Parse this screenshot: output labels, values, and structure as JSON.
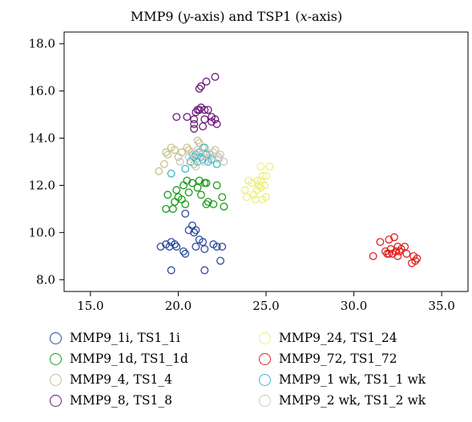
{
  "chart_data": {
    "type": "scatter",
    "title": "MMP9 (y-axis) and TSP1 (x-axis)",
    "xlabel": "",
    "ylabel": "",
    "xlim": [
      13.5,
      36.5
    ],
    "ylim": [
      7.5,
      18.5
    ],
    "xticks": [
      "15.0",
      "20.0",
      "25.0",
      "30.0",
      "35.0"
    ],
    "yticks": [
      "8.0",
      "10.0",
      "12.0",
      "14.0",
      "16.0",
      "18.0"
    ],
    "grid": false,
    "legend_position": "bottom",
    "series": [
      {
        "name": "MMP9_1i, TS1_1i",
        "color": "#2a4a9c",
        "points": [
          [
            19.0,
            9.4
          ],
          [
            19.3,
            9.5
          ],
          [
            19.5,
            9.4
          ],
          [
            19.6,
            9.6
          ],
          [
            19.8,
            9.5
          ],
          [
            19.9,
            9.4
          ],
          [
            19.6,
            8.4
          ],
          [
            20.3,
            9.2
          ],
          [
            20.4,
            9.1
          ],
          [
            20.6,
            10.1
          ],
          [
            20.8,
            10.3
          ],
          [
            20.9,
            10.0
          ],
          [
            21.0,
            9.4
          ],
          [
            21.2,
            9.7
          ],
          [
            21.4,
            9.6
          ],
          [
            21.5,
            9.3
          ],
          [
            21.5,
            8.4
          ],
          [
            20.4,
            10.8
          ],
          [
            22.0,
            9.5
          ],
          [
            22.2,
            9.4
          ],
          [
            22.5,
            9.4
          ],
          [
            22.4,
            8.8
          ],
          [
            21.0,
            10.1
          ]
        ]
      },
      {
        "name": "MMP9_1d, TS1_1d",
        "color": "#1a9a1a",
        "points": [
          [
            19.3,
            11.0
          ],
          [
            19.7,
            11.0
          ],
          [
            19.4,
            11.6
          ],
          [
            19.9,
            11.8
          ],
          [
            20.0,
            11.5
          ],
          [
            20.2,
            11.4
          ],
          [
            19.8,
            11.3
          ],
          [
            20.3,
            12.0
          ],
          [
            20.5,
            12.2
          ],
          [
            20.4,
            11.2
          ],
          [
            20.6,
            11.7
          ],
          [
            20.8,
            12.1
          ],
          [
            21.1,
            11.9
          ],
          [
            21.3,
            11.6
          ],
          [
            21.5,
            12.1
          ],
          [
            21.6,
            11.2
          ],
          [
            21.7,
            11.3
          ],
          [
            21.6,
            12.1
          ],
          [
            22.0,
            11.2
          ],
          [
            22.2,
            12.0
          ],
          [
            22.5,
            11.5
          ],
          [
            22.6,
            11.1
          ],
          [
            21.2,
            12.2
          ]
        ]
      },
      {
        "name": "MMP9_4, TS1_4",
        "color": "#c8c090",
        "points": [
          [
            18.9,
            12.6
          ],
          [
            19.2,
            12.9
          ],
          [
            19.4,
            13.3
          ],
          [
            19.6,
            13.6
          ],
          [
            19.8,
            13.5
          ],
          [
            20.0,
            13.2
          ],
          [
            20.2,
            13.4
          ],
          [
            20.5,
            13.6
          ],
          [
            20.6,
            13.5
          ],
          [
            20.8,
            13.3
          ],
          [
            21.0,
            13.1
          ],
          [
            21.2,
            13.8
          ],
          [
            21.4,
            13.6
          ],
          [
            21.6,
            13.4
          ],
          [
            21.8,
            13.3
          ],
          [
            22.1,
            13.5
          ],
          [
            22.3,
            13.2
          ],
          [
            21.1,
            13.9
          ],
          [
            19.3,
            13.4
          ],
          [
            20.9,
            12.9
          ]
        ]
      },
      {
        "name": "MMP9_8, TS1_8",
        "color": "#6a1a7a",
        "points": [
          [
            19.9,
            14.9
          ],
          [
            20.5,
            14.9
          ],
          [
            20.9,
            14.8
          ],
          [
            20.9,
            14.6
          ],
          [
            20.9,
            14.4
          ],
          [
            21.0,
            15.1
          ],
          [
            21.1,
            15.2
          ],
          [
            21.2,
            15.2
          ],
          [
            21.3,
            15.3
          ],
          [
            21.5,
            15.2
          ],
          [
            21.4,
            14.5
          ],
          [
            21.7,
            15.2
          ],
          [
            21.9,
            14.9
          ],
          [
            21.9,
            14.7
          ],
          [
            22.1,
            14.8
          ],
          [
            22.2,
            14.6
          ],
          [
            21.2,
            16.1
          ],
          [
            21.3,
            16.2
          ],
          [
            21.6,
            16.4
          ],
          [
            22.1,
            16.6
          ],
          [
            21.5,
            14.8
          ]
        ]
      },
      {
        "name": "MMP9_24, TS1_24",
        "color": "#eeee80",
        "points": [
          [
            23.8,
            11.8
          ],
          [
            23.9,
            11.5
          ],
          [
            24.0,
            12.2
          ],
          [
            24.2,
            12.1
          ],
          [
            24.3,
            11.6
          ],
          [
            24.5,
            12.2
          ],
          [
            24.6,
            12.0
          ],
          [
            24.5,
            11.8
          ],
          [
            24.7,
            11.9
          ],
          [
            24.7,
            12.2
          ],
          [
            24.7,
            12.8
          ],
          [
            24.8,
            12.4
          ],
          [
            24.9,
            12.0
          ],
          [
            25.0,
            11.5
          ],
          [
            25.0,
            12.4
          ],
          [
            25.2,
            12.8
          ],
          [
            24.4,
            11.4
          ],
          [
            24.8,
            11.4
          ]
        ]
      },
      {
        "name": "MMP9_72, TS1_72",
        "color": "#e02020",
        "points": [
          [
            31.1,
            9.0
          ],
          [
            31.5,
            9.6
          ],
          [
            31.8,
            9.2
          ],
          [
            31.9,
            9.1
          ],
          [
            32.0,
            9.7
          ],
          [
            32.1,
            9.3
          ],
          [
            32.2,
            9.1
          ],
          [
            32.3,
            9.8
          ],
          [
            32.4,
            9.2
          ],
          [
            32.5,
            9.0
          ],
          [
            32.6,
            9.2
          ],
          [
            32.7,
            9.3
          ],
          [
            32.9,
            9.4
          ],
          [
            33.0,
            9.1
          ],
          [
            33.3,
            8.7
          ],
          [
            33.4,
            9.0
          ],
          [
            33.5,
            8.8
          ],
          [
            33.6,
            8.9
          ],
          [
            32.5,
            9.4
          ],
          [
            32.0,
            9.1
          ]
        ]
      },
      {
        "name": "MMP9_1 wk, TS1_1 wk",
        "color": "#40b8c8",
        "points": [
          [
            19.6,
            12.5
          ],
          [
            20.4,
            12.7
          ],
          [
            20.7,
            13.0
          ],
          [
            20.9,
            13.2
          ],
          [
            21.0,
            13.3
          ],
          [
            21.1,
            13.0
          ],
          [
            21.2,
            13.4
          ],
          [
            21.3,
            13.2
          ],
          [
            21.4,
            13.1
          ],
          [
            21.6,
            13.3
          ],
          [
            21.7,
            13.0
          ],
          [
            21.9,
            13.1
          ],
          [
            22.2,
            12.9
          ],
          [
            21.5,
            13.6
          ]
        ]
      },
      {
        "name": "MMP9_2 wk, TS1_2 wk",
        "color": "#c8c8c8",
        "points": [
          [
            20.1,
            13.0
          ],
          [
            20.6,
            13.2
          ],
          [
            20.8,
            13.4
          ],
          [
            21.0,
            12.8
          ],
          [
            21.3,
            13.3
          ],
          [
            21.5,
            13.0
          ],
          [
            21.6,
            13.4
          ],
          [
            21.8,
            13.2
          ],
          [
            22.0,
            13.4
          ],
          [
            22.3,
            13.1
          ],
          [
            22.6,
            13.0
          ],
          [
            21.1,
            13.5
          ],
          [
            22.4,
            13.3
          ]
        ]
      }
    ]
  }
}
